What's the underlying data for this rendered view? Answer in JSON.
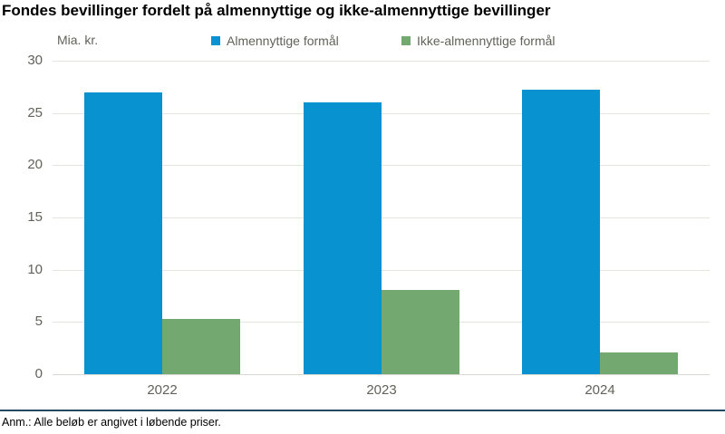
{
  "title": "Fondes bevillinger fordelt på almennyttige og ikke-almennyttige bevillinger",
  "unit_label": "Mia. kr.",
  "legend": [
    {
      "label": "Almennyttige formål",
      "color": "#0892d0"
    },
    {
      "label": "Ikke-almennyttige formål",
      "color": "#73a871"
    }
  ],
  "note": "Anm.: Alle beløb er angivet i løbende priser.",
  "colors": {
    "bar_blue": "#0892d0",
    "bar_green": "#73a871",
    "footer_rule": "#234a60",
    "axis_text": "#62625a",
    "gridline": "#e6e4df"
  },
  "chart_data": {
    "type": "bar",
    "title": "Fondes bevillinger fordelt på almennyttige og ikke-almennyttige bevillinger",
    "categories": [
      "2022",
      "2023",
      "2024"
    ],
    "series": [
      {
        "name": "Almennyttige formål",
        "color": "#0892d0",
        "values": [
          27.0,
          26.0,
          27.2
        ]
      },
      {
        "name": "Ikke-almennyttige formål",
        "color": "#73a871",
        "values": [
          5.3,
          8.1,
          2.1
        ]
      }
    ],
    "xlabel": "",
    "ylabel": "Mia. kr.",
    "ylim": [
      0,
      30
    ],
    "ytick_step": 5,
    "yticks": [
      0,
      5,
      10,
      15,
      20,
      25,
      30
    ],
    "grid": true,
    "legend_position": "top",
    "footnote": "Anm.: Alle beløb er angivet i løbende priser."
  }
}
